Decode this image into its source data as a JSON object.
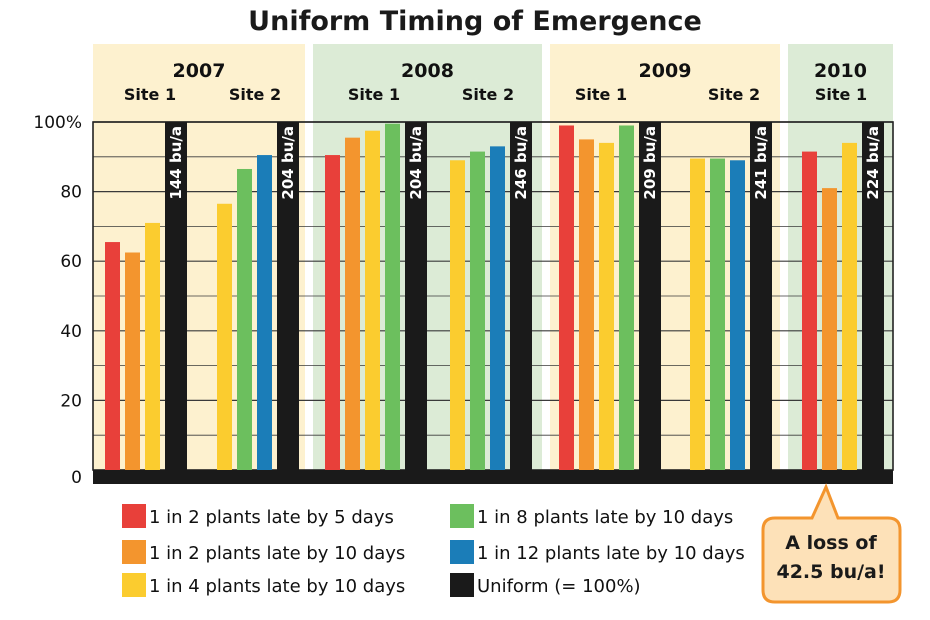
{
  "chart_data": {
    "type": "bar",
    "title": "Uniform Timing of Emergence",
    "ylim": [
      0,
      100
    ],
    "yticks": [
      "100%",
      "80",
      "60",
      "40",
      "20",
      "0"
    ],
    "grid": true,
    "legend_position": "bottom",
    "series": [
      {
        "name": "1 in 2 plants late by 5 days",
        "color": "#e8403a"
      },
      {
        "name": "1 in 2 plants late by 10 days",
        "color": "#f3952e"
      },
      {
        "name": "1 in 4 plants late by 10 days",
        "color": "#fbcc2f"
      },
      {
        "name": "1 in 8 plants late by 10 days",
        "color": "#6cbf5e"
      },
      {
        "name": "1 in 12 plants late by 10 days",
        "color": "#1b7db8"
      },
      {
        "name": "Uniform (= 100%)",
        "color": "#1a1a1a"
      }
    ],
    "groups": [
      {
        "year": "2007",
        "site": "Site 1",
        "uniform_label": "144 bu/a",
        "bg": "#fdf1cf",
        "bars": [
          {
            "series": 0,
            "value": 65.5
          },
          {
            "series": 1,
            "value": 62.5
          },
          {
            "series": 2,
            "value": 71
          },
          {
            "series": 5,
            "value": 100
          }
        ]
      },
      {
        "year": "2007",
        "site": "Site 2",
        "uniform_label": "204 bu/a",
        "bg": "#fdf1cf",
        "bars": [
          {
            "series": 2,
            "value": 76.5
          },
          {
            "series": 3,
            "value": 86.5
          },
          {
            "series": 4,
            "value": 90.5
          },
          {
            "series": 5,
            "value": 100
          }
        ]
      },
      {
        "year": "2008",
        "site": "Site 1",
        "uniform_label": "204 bu/a",
        "bg": "#dcebd6",
        "bars": [
          {
            "series": 0,
            "value": 90.5
          },
          {
            "series": 1,
            "value": 95.5
          },
          {
            "series": 2,
            "value": 97.5
          },
          {
            "series": 3,
            "value": 99.5
          },
          {
            "series": 5,
            "value": 100
          }
        ]
      },
      {
        "year": "2008",
        "site": "Site 2",
        "uniform_label": "246 bu/a",
        "bg": "#dcebd6",
        "bars": [
          {
            "series": 2,
            "value": 89
          },
          {
            "series": 3,
            "value": 91.5
          },
          {
            "series": 4,
            "value": 93
          },
          {
            "series": 5,
            "value": 100
          }
        ]
      },
      {
        "year": "2009",
        "site": "Site 1",
        "uniform_label": "209 bu/a",
        "bg": "#fdf1cf",
        "bars": [
          {
            "series": 0,
            "value": 99
          },
          {
            "series": 1,
            "value": 95
          },
          {
            "series": 2,
            "value": 94
          },
          {
            "series": 3,
            "value": 99
          },
          {
            "series": 5,
            "value": 100
          }
        ]
      },
      {
        "year": "2009",
        "site": "Site 2",
        "uniform_label": "241 bu/a",
        "bg": "#fdf1cf",
        "bars": [
          {
            "series": 2,
            "value": 89.5
          },
          {
            "series": 3,
            "value": 89.5
          },
          {
            "series": 4,
            "value": 89
          },
          {
            "series": 5,
            "value": 100
          }
        ]
      },
      {
        "year": "2010",
        "site": "Site 1",
        "uniform_label": "224 bu/a",
        "bg": "#dcebd6",
        "bars": [
          {
            "series": 0,
            "value": 91.5
          },
          {
            "series": 1,
            "value": 81
          },
          {
            "series": 2,
            "value": 94
          },
          {
            "series": 5,
            "value": 100
          }
        ]
      }
    ],
    "callout": {
      "lines": [
        "A loss of",
        "42.5 bu/a!"
      ],
      "fill": "#fde1b8",
      "stroke": "#f3952e"
    }
  }
}
